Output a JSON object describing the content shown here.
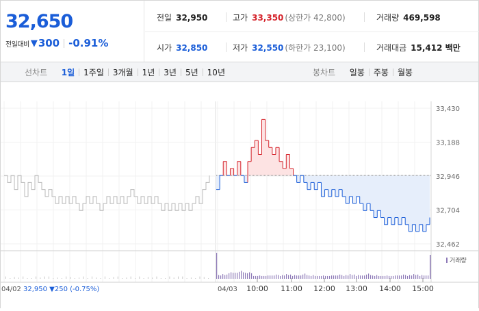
{
  "summary": {
    "price": "32,650",
    "change_label": "전일대비",
    "change_arrow": "▼",
    "change_value": "300",
    "change_rate": "-0.91%"
  },
  "stats": {
    "prev_close": {
      "label": "전일",
      "value": "32,950"
    },
    "high": {
      "label": "고가",
      "value": "33,350",
      "sub": "(상한가 42,800)"
    },
    "volume": {
      "label": "거래량",
      "value": "469,598"
    },
    "open": {
      "label": "시가",
      "value": "32,850"
    },
    "low": {
      "label": "저가",
      "value": "32,550",
      "sub": "(하한가 23,100)"
    },
    "amount": {
      "label": "거래대금",
      "value": "15,412 백만"
    }
  },
  "line_tabs": {
    "title": "선차트",
    "items": [
      "1일",
      "1주일",
      "3개월",
      "1년",
      "3년",
      "5년",
      "10년"
    ],
    "active": "1일"
  },
  "candle_tabs": {
    "title": "봉차트",
    "items": [
      "일봉",
      "주봉",
      "월봉"
    ]
  },
  "colors": {
    "up": "#d5242c",
    "down": "#1a5dd8",
    "prev_line": "#b8b8b8",
    "fill_up": "#fde3e3",
    "fill_down": "#e6eefb"
  },
  "chart_data": {
    "type": "line",
    "prev_day": {
      "date": "04/02",
      "close": "32,950",
      "change_arrow": "▼",
      "change": "250",
      "rate": "(-0.75%)"
    },
    "today_date": "04/03",
    "reference_price": 32950,
    "ylim": [
      32462,
      33430
    ],
    "y_ticks": [
      "33,430",
      "33,188",
      "32,946",
      "32,704",
      "32,462"
    ],
    "x_ticks": [
      "10:00",
      "11:00",
      "12:00",
      "13:00",
      "14:00",
      "15:00"
    ],
    "volume_label": "거래량",
    "prev_day_prices": [
      32950,
      32900,
      32950,
      32850,
      32950,
      32900,
      32800,
      32900,
      32850,
      32950,
      32900,
      32850,
      32800,
      32850,
      32800,
      32750,
      32800,
      32750,
      32800,
      32750,
      32800,
      32750,
      32700,
      32750,
      32800,
      32750,
      32800,
      32750,
      32700,
      32750,
      32800,
      32750,
      32800,
      32750,
      32800,
      32750,
      32800,
      32850,
      32800,
      32750,
      32800,
      32750,
      32800,
      32750,
      32800,
      32750,
      32700,
      32750,
      32700,
      32750,
      32700,
      32750,
      32700,
      32750,
      32700,
      32750,
      32800,
      32750,
      32850,
      32900,
      32950
    ],
    "today_prices": [
      32850,
      32950,
      33050,
      32950,
      33000,
      32950,
      33050,
      32950,
      32900,
      33050,
      33150,
      33200,
      33100,
      33350,
      33200,
      33150,
      33100,
      33150,
      33050,
      33000,
      33100,
      33000,
      32950,
      32900,
      32950,
      32900,
      32850,
      32900,
      32850,
      32900,
      32800,
      32850,
      32800,
      32850,
      32800,
      32850,
      32800,
      32750,
      32800,
      32750,
      32800,
      32750,
      32700,
      32750,
      32700,
      32650,
      32700,
      32650,
      32600,
      32650,
      32600,
      32650,
      32600,
      32650,
      32600,
      32550,
      32600,
      32550,
      32600,
      32550,
      32600,
      32650
    ]
  }
}
